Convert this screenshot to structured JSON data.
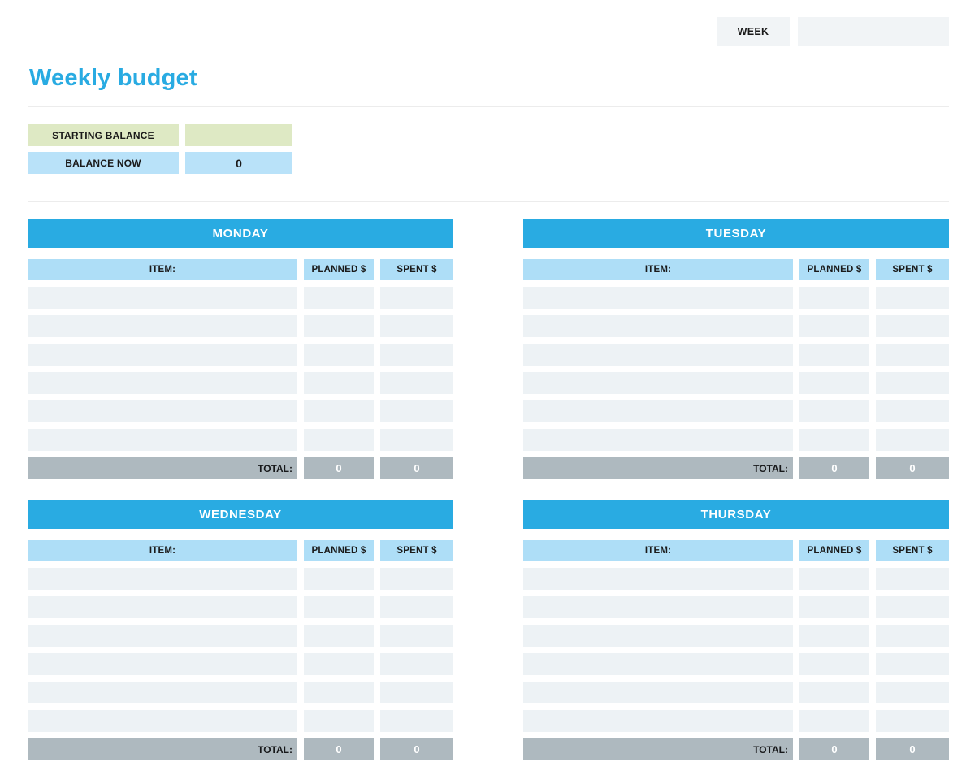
{
  "page": {
    "title": "Weekly budget"
  },
  "week": {
    "label": "WEEK",
    "value": ""
  },
  "balance": {
    "rows": [
      {
        "label": "STARTING BALANCE",
        "value": "",
        "style": "green"
      },
      {
        "label": "BALANCE NOW",
        "value": "0",
        "style": "blue"
      }
    ]
  },
  "tables": {
    "columns": {
      "item": "ITEM:",
      "planned": "PLANNED $",
      "spent": "SPENT $"
    },
    "total_label": "TOTAL:",
    "rows_per_day": 6,
    "days": [
      {
        "name": "MONDAY",
        "rows": [
          {
            "item": "",
            "planned": "",
            "spent": ""
          },
          {
            "item": "",
            "planned": "",
            "spent": ""
          },
          {
            "item": "",
            "planned": "",
            "spent": ""
          },
          {
            "item": "",
            "planned": "",
            "spent": ""
          },
          {
            "item": "",
            "planned": "",
            "spent": ""
          },
          {
            "item": "",
            "planned": "",
            "spent": ""
          }
        ],
        "total_planned": "0",
        "total_spent": "0"
      },
      {
        "name": "TUESDAY",
        "rows": [
          {
            "item": "",
            "planned": "",
            "spent": ""
          },
          {
            "item": "",
            "planned": "",
            "spent": ""
          },
          {
            "item": "",
            "planned": "",
            "spent": ""
          },
          {
            "item": "",
            "planned": "",
            "spent": ""
          },
          {
            "item": "",
            "planned": "",
            "spent": ""
          },
          {
            "item": "",
            "planned": "",
            "spent": ""
          }
        ],
        "total_planned": "0",
        "total_spent": "0"
      },
      {
        "name": "WEDNESDAY",
        "rows": [
          {
            "item": "",
            "planned": "",
            "spent": ""
          },
          {
            "item": "",
            "planned": "",
            "spent": ""
          },
          {
            "item": "",
            "planned": "",
            "spent": ""
          },
          {
            "item": "",
            "planned": "",
            "spent": ""
          },
          {
            "item": "",
            "planned": "",
            "spent": ""
          },
          {
            "item": "",
            "planned": "",
            "spent": ""
          }
        ],
        "total_planned": "0",
        "total_spent": "0"
      },
      {
        "name": "THURSDAY",
        "rows": [
          {
            "item": "",
            "planned": "",
            "spent": ""
          },
          {
            "item": "",
            "planned": "",
            "spent": ""
          },
          {
            "item": "",
            "planned": "",
            "spent": ""
          },
          {
            "item": "",
            "planned": "",
            "spent": ""
          },
          {
            "item": "",
            "planned": "",
            "spent": ""
          },
          {
            "item": "",
            "planned": "",
            "spent": ""
          }
        ],
        "total_planned": "0",
        "total_spent": "0"
      }
    ]
  },
  "colors": {
    "accent_blue": "#29abe2",
    "column_header_blue": "#aedef7",
    "balance_now_blue": "#b9e2f9",
    "starting_balance_green": "#dee9c4",
    "empty_cell_gray": "#edf2f5",
    "total_gray": "#aeb9bf",
    "week_box_gray": "#f1f4f6"
  }
}
